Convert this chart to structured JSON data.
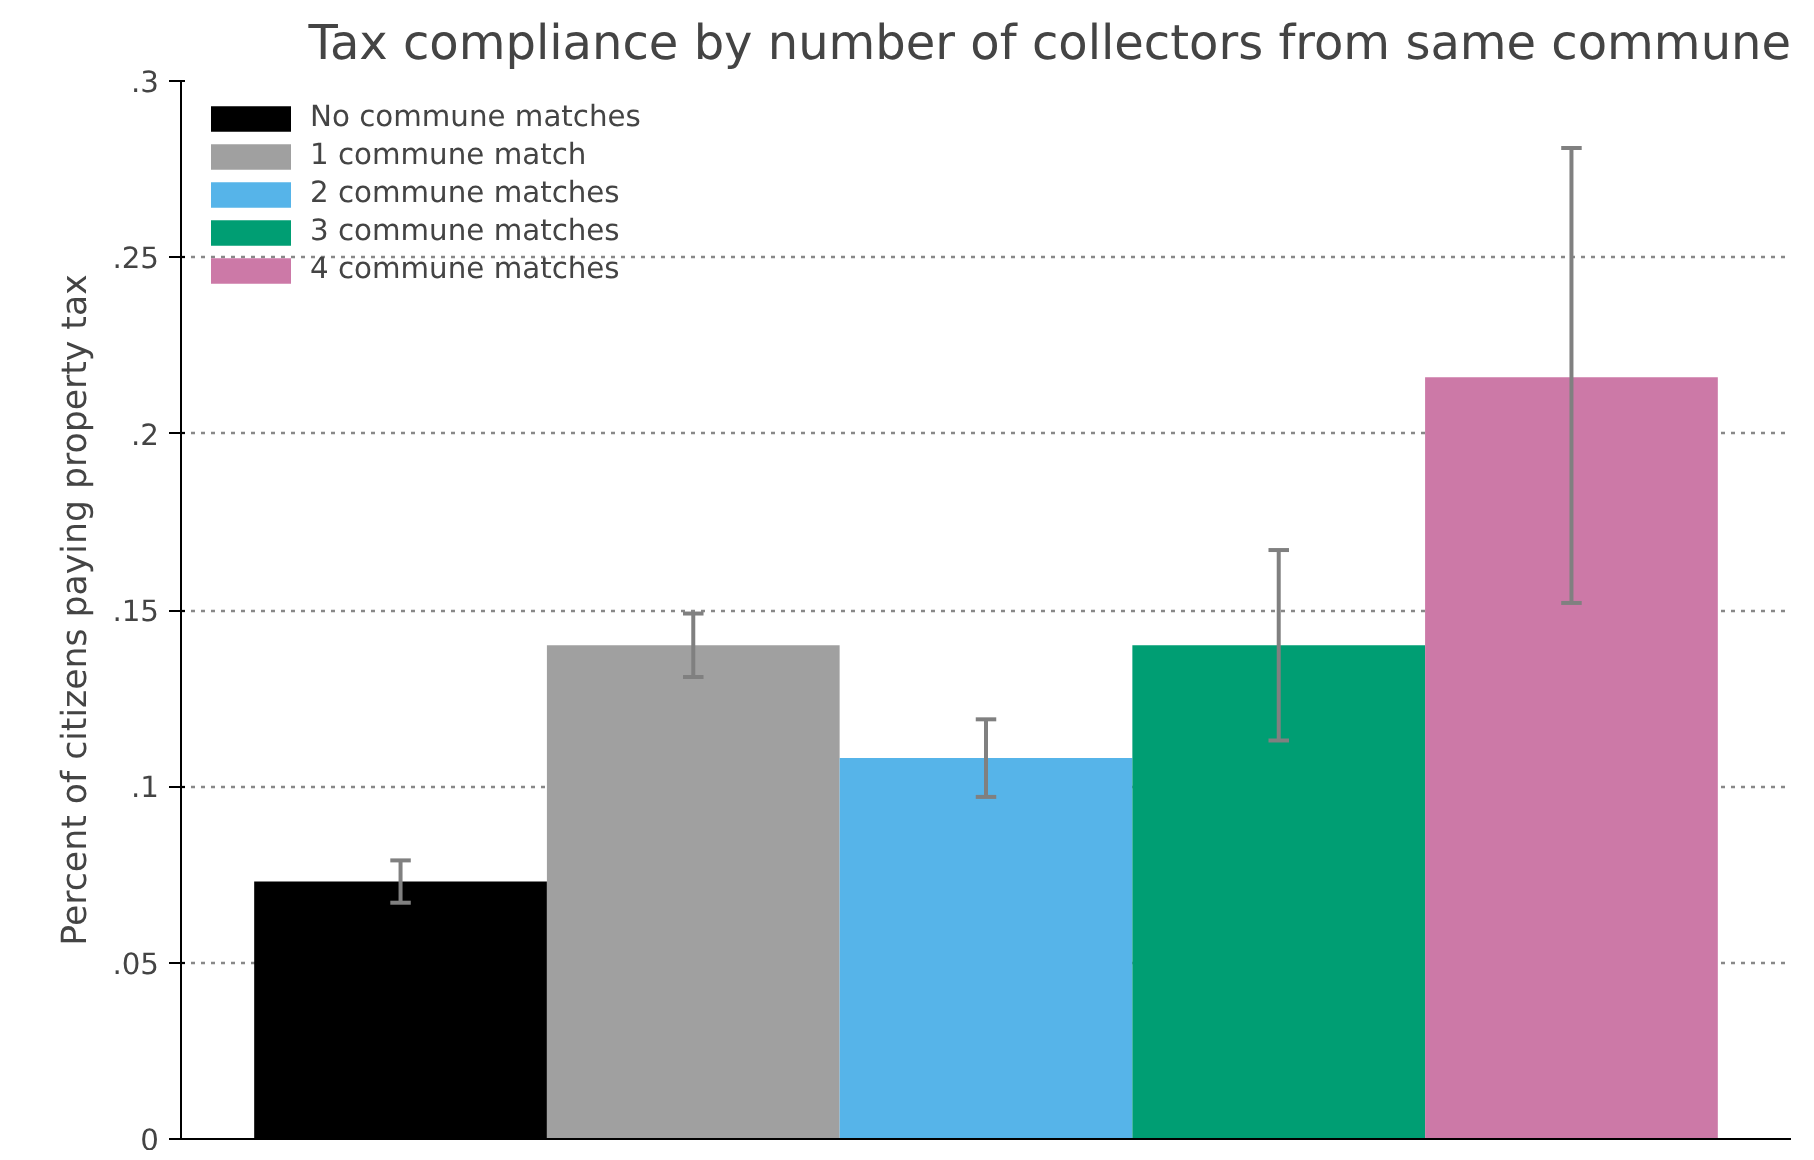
{
  "chart_data": {
    "type": "bar",
    "title": "Tax compliance by number of collectors from same commune",
    "ylabel": "Percent of citizens paying property tax",
    "categories": [
      null,
      null,
      null,
      null,
      null
    ],
    "series": [
      {
        "name": "No commune matches",
        "color": "#000000",
        "values": [
          0.073,
          null,
          null,
          null,
          null
        ],
        "errors": [
          [
            0.067,
            0.079
          ],
          null,
          null,
          null,
          null
        ]
      },
      {
        "name": "1 commune match",
        "color": "#a0a0a0",
        "values": [
          null,
          0.14,
          null,
          null,
          null
        ],
        "errors": [
          null,
          [
            0.131,
            0.149
          ],
          null,
          null,
          null
        ]
      },
      {
        "name": "2 commune matches",
        "color": "#56b4e9",
        "values": [
          null,
          null,
          0.108,
          null,
          null
        ],
        "errors": [
          null,
          null,
          [
            0.097,
            0.119
          ],
          null,
          null
        ]
      },
      {
        "name": "3 commune matches",
        "color": "#009e73",
        "values": [
          null,
          null,
          null,
          0.14,
          null
        ],
        "errors": [
          null,
          null,
          null,
          [
            0.113,
            0.167
          ],
          null
        ]
      },
      {
        "name": "4 commune matches",
        "color": "#cc79a7",
        "values": [
          null,
          null,
          null,
          null,
          0.216
        ],
        "errors": [
          null,
          null,
          null,
          null,
          [
            0.152,
            0.281
          ]
        ]
      }
    ],
    "ylim": [
      0,
      0.3
    ],
    "yticks": [
      0,
      {
        "value": 0.05,
        "label": ".05"
      },
      {
        "value": 0.1,
        "label": ".1"
      },
      {
        "value": 0.15,
        "label": ".15"
      },
      {
        "value": 0.2,
        "label": ".2"
      },
      {
        "value": 0.25,
        "label": ".25"
      },
      {
        "value": 0.3,
        "label": ".3"
      }
    ],
    "grid": "y",
    "legend": "top left"
  }
}
